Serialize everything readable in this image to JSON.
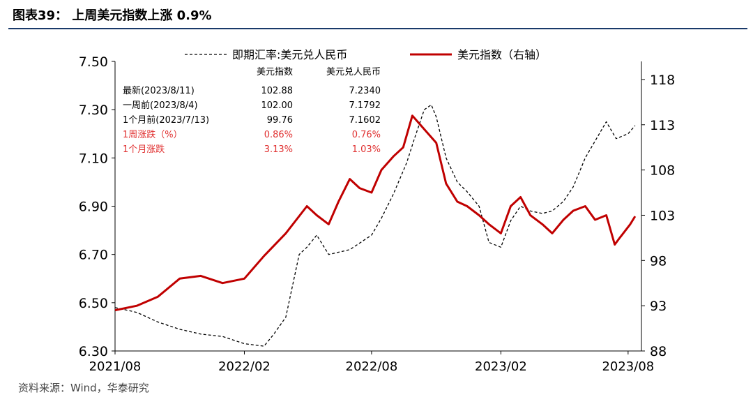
{
  "header": {
    "title": "图表39：  上周美元指数上涨 0.9%"
  },
  "footer": {
    "source": "资料来源：Wind，华泰研究"
  },
  "chart_data": {
    "type": "line",
    "x_ticks": [
      "2021/08",
      "2022/02",
      "2022/08",
      "2023/02",
      "2023/08"
    ],
    "y_left_ticks": [
      "6.30",
      "6.50",
      "6.70",
      "6.90",
      "7.10",
      "7.30",
      "7.50"
    ],
    "y_right_ticks": [
      "88",
      "93",
      "98",
      "103",
      "108",
      "113",
      "118"
    ],
    "ylim_left": [
      6.3,
      7.5
    ],
    "ylim_right": [
      88,
      120
    ],
    "series": [
      {
        "name": "即期汇率:美元兑人民币",
        "axis": "left",
        "color": "#000000",
        "dashed": true,
        "x": [
          "2021-08-01",
          "2021-09-01",
          "2021-10-01",
          "2021-11-01",
          "2021-12-01",
          "2022-01-01",
          "2022-02-01",
          "2022-03-01",
          "2022-03-15",
          "2022-04-01",
          "2022-04-20",
          "2022-05-01",
          "2022-05-15",
          "2022-06-01",
          "2022-07-01",
          "2022-08-01",
          "2022-08-15",
          "2022-09-01",
          "2022-09-20",
          "2022-10-01",
          "2022-10-15",
          "2022-10-25",
          "2022-11-01",
          "2022-11-15",
          "2022-12-01",
          "2022-12-15",
          "2023-01-01",
          "2023-01-15",
          "2023-02-01",
          "2023-02-15",
          "2023-03-01",
          "2023-03-15",
          "2023-04-01",
          "2023-04-15",
          "2023-05-01",
          "2023-05-15",
          "2023-06-01",
          "2023-06-15",
          "2023-07-01",
          "2023-07-15",
          "2023-08-01",
          "2023-08-11"
        ],
        "values": [
          6.48,
          6.46,
          6.42,
          6.39,
          6.37,
          6.36,
          6.33,
          6.32,
          6.37,
          6.44,
          6.7,
          6.73,
          6.78,
          6.7,
          6.72,
          6.78,
          6.85,
          6.95,
          7.08,
          7.18,
          7.3,
          7.32,
          7.27,
          7.1,
          7.0,
          6.96,
          6.9,
          6.75,
          6.73,
          6.84,
          6.9,
          6.88,
          6.87,
          6.88,
          6.92,
          6.98,
          7.1,
          7.17,
          7.25,
          7.18,
          7.2,
          7.234
        ]
      },
      {
        "name": "美元指数（右轴）",
        "axis": "right",
        "color": "#c00000",
        "dashed": false,
        "x": [
          "2021-08-01",
          "2021-09-01",
          "2021-10-01",
          "2021-11-01",
          "2021-12-01",
          "2022-01-01",
          "2022-02-01",
          "2022-03-01",
          "2022-04-01",
          "2022-05-01",
          "2022-05-15",
          "2022-06-01",
          "2022-06-15",
          "2022-07-01",
          "2022-07-15",
          "2022-08-01",
          "2022-08-15",
          "2022-09-01",
          "2022-09-15",
          "2022-09-28",
          "2022-10-15",
          "2022-11-01",
          "2022-11-15",
          "2022-12-01",
          "2022-12-15",
          "2023-01-01",
          "2023-01-15",
          "2023-02-01",
          "2023-02-15",
          "2023-03-01",
          "2023-03-15",
          "2023-04-01",
          "2023-04-15",
          "2023-05-01",
          "2023-05-15",
          "2023-06-01",
          "2023-06-15",
          "2023-07-01",
          "2023-07-13",
          "2023-07-20",
          "2023-08-04",
          "2023-08-11"
        ],
        "values": [
          92.5,
          93.0,
          94.0,
          96.0,
          96.3,
          95.5,
          96.0,
          98.5,
          101.0,
          104.0,
          103.0,
          102.0,
          104.5,
          107.0,
          106.0,
          105.5,
          108.0,
          109.5,
          110.5,
          114.0,
          112.5,
          111.0,
          106.5,
          104.5,
          104.0,
          103.0,
          102.0,
          101.0,
          104.0,
          105.0,
          103.0,
          102.0,
          101.0,
          102.5,
          103.5,
          104.0,
          102.5,
          103.0,
          99.76,
          100.5,
          102.0,
          102.88
        ]
      }
    ],
    "legend": [
      {
        "label": "即期汇率:美元兑人民币"
      },
      {
        "label": "美元指数（右轴）"
      }
    ],
    "annotation_table": {
      "header": [
        "美元指数",
        "美元兑人民币"
      ],
      "rows": [
        {
          "label": "最新(2023/8/11)",
          "v1": "102.88",
          "v2": "7.2340",
          "highlight": false
        },
        {
          "label": "一周前(2023/8/4)",
          "v1": "102.00",
          "v2": "7.1792",
          "highlight": false
        },
        {
          "label": "1个月前(2023/7/13)",
          "v1": "99.76",
          "v2": "7.1602",
          "highlight": false
        },
        {
          "label": "1周涨跌（%）",
          "v1": "0.86%",
          "v2": "0.76%",
          "highlight": true
        },
        {
          "label": "1个月涨跌",
          "v1": "3.13%",
          "v2": "1.03%",
          "highlight": true
        }
      ]
    }
  }
}
